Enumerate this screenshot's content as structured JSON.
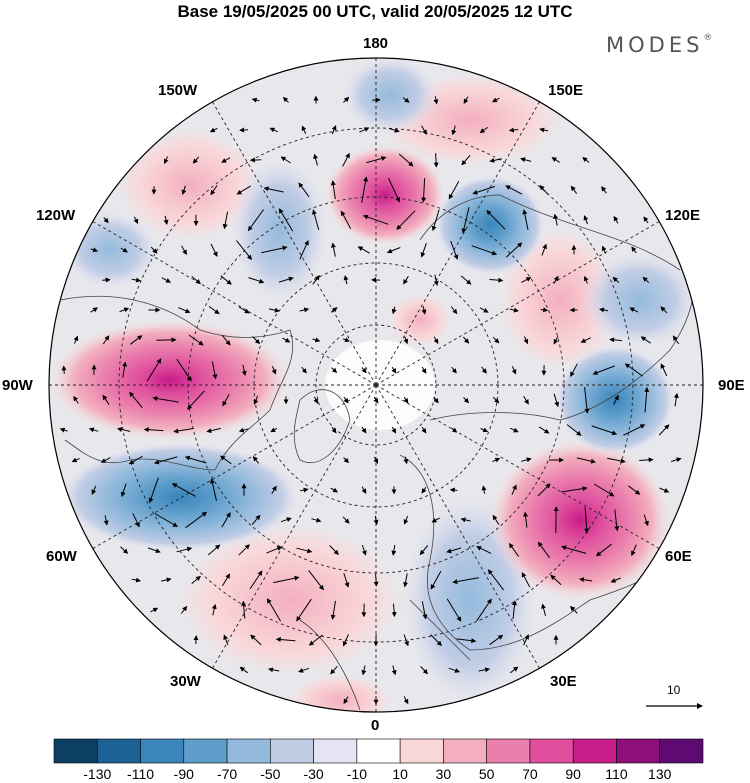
{
  "title": "Base 19/05/2025 00 UTC, valid 20/05/2025 12 UTC",
  "brand": "MODES",
  "brand_mark": "®",
  "map": {
    "projection": "north polar stereographic",
    "meridian_labels": {
      "lon180": "180",
      "lon150e": "150E",
      "lon120e": "120E",
      "lon90e": "90E",
      "lon60e": "60E",
      "lon30e": "30E",
      "lon0": "0",
      "lon30w": "30W",
      "lon60w": "60W",
      "lon90w": "90W",
      "lon120w": "120W",
      "lon150w": "150W"
    },
    "vector_scale_label": "10",
    "anomaly_centers": [
      {
        "sign": "positive",
        "near": "90W"
      },
      {
        "sign": "positive",
        "near": "60E"
      },
      {
        "sign": "positive",
        "near": "180"
      },
      {
        "sign": "negative",
        "near": "60W"
      },
      {
        "sign": "negative",
        "near": "90E"
      },
      {
        "sign": "negative",
        "near": "150E"
      }
    ]
  },
  "colorbar": {
    "labels": [
      "-130",
      "-110",
      "-90",
      "-70",
      "-50",
      "-30",
      "-10",
      "10",
      "30",
      "50",
      "70",
      "90",
      "110",
      "130"
    ],
    "colors": [
      "#0b3f63",
      "#1c6193",
      "#3a85ba",
      "#5f9ecb",
      "#93badc",
      "#c1cde5",
      "#e6e4f2",
      "#ffffff",
      "#f9d7d9",
      "#f3afbf",
      "#ea7fad",
      "#df4f9e",
      "#c81c88",
      "#8e0f7a",
      "#5d0a73"
    ]
  }
}
